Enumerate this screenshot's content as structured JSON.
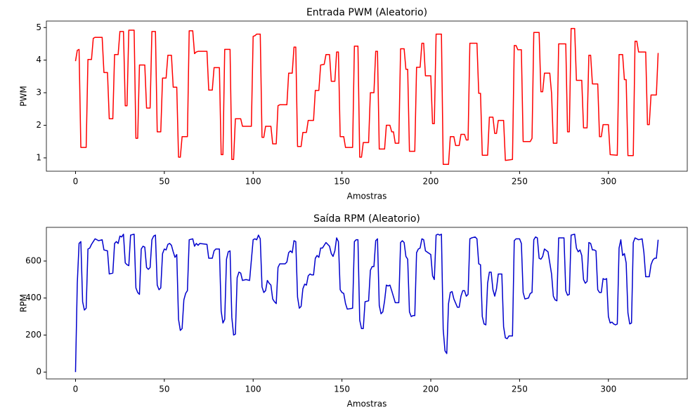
{
  "chart_data": [
    {
      "type": "line",
      "title": "Entrada PWM (Aleatorio)",
      "xlabel": "Amostras",
      "ylabel": "PWM",
      "color": "#ff0000",
      "x": [
        0,
        1,
        2,
        3,
        6,
        7,
        9,
        10,
        11,
        15,
        16,
        18,
        19,
        21,
        22,
        24,
        25,
        27,
        28,
        29,
        30,
        33,
        34,
        35,
        36,
        39,
        40,
        42,
        43,
        45,
        46,
        48,
        49,
        51,
        52,
        54,
        55,
        57,
        58,
        59,
        60,
        63,
        64,
        66,
        67,
        68,
        69,
        74,
        75,
        77,
        78,
        81,
        82,
        83,
        84,
        87,
        88,
        89,
        90,
        93,
        94,
        99,
        100,
        101,
        102,
        104,
        105,
        106,
        107,
        110,
        111,
        113,
        114,
        115,
        119,
        120,
        122,
        123,
        124,
        125,
        127,
        128,
        130,
        131,
        134,
        135,
        137,
        138,
        140,
        141,
        143,
        144,
        146,
        147,
        148,
        149,
        151,
        152,
        156,
        157,
        159,
        160,
        161,
        162,
        165,
        166,
        168,
        169,
        170,
        171,
        174,
        175,
        177,
        178,
        179,
        180,
        182,
        183,
        185,
        186,
        187,
        188,
        191,
        192,
        194,
        195,
        196,
        197,
        200,
        201,
        202,
        203,
        206,
        207,
        210,
        211,
        213,
        214,
        216,
        217,
        219,
        220,
        221,
        222,
        226,
        227,
        228,
        229,
        232,
        233,
        235,
        236,
        237,
        238,
        241,
        242,
        246,
        247,
        248,
        249,
        251,
        252,
        256,
        257,
        258,
        261,
        262,
        263,
        264,
        267,
        268,
        269,
        271,
        272,
        276,
        277,
        278,
        279,
        281,
        282,
        285,
        286,
        288,
        289,
        290,
        291,
        294,
        295,
        296,
        297,
        300,
        301,
        305,
        306,
        308,
        309,
        310,
        311,
        314,
        315,
        316,
        317,
        321,
        322,
        323,
        324,
        327,
        328
      ],
      "values": [
        3.97,
        4.3,
        4.33,
        1.32,
        1.32,
        4.02,
        4.02,
        4.67,
        4.7,
        4.7,
        3.62,
        3.62,
        2.2,
        2.2,
        4.17,
        4.17,
        4.88,
        4.88,
        2.6,
        2.6,
        4.92,
        4.92,
        1.6,
        1.6,
        3.85,
        3.85,
        2.53,
        2.53,
        4.88,
        4.88,
        1.8,
        1.8,
        3.45,
        3.45,
        4.15,
        4.15,
        3.17,
        3.17,
        1.02,
        1.02,
        1.65,
        1.65,
        4.9,
        4.9,
        4.2,
        4.25,
        4.27,
        4.27,
        3.08,
        3.08,
        3.77,
        3.77,
        1.1,
        1.1,
        4.33,
        4.33,
        0.95,
        0.95,
        2.2,
        2.2,
        1.97,
        1.97,
        4.73,
        4.75,
        4.8,
        4.8,
        1.63,
        1.63,
        1.97,
        1.97,
        1.43,
        1.43,
        2.6,
        2.63,
        2.63,
        3.6,
        3.6,
        4.4,
        4.4,
        1.35,
        1.35,
        1.78,
        1.78,
        2.15,
        2.15,
        3.07,
        3.07,
        3.85,
        3.87,
        4.17,
        4.17,
        3.35,
        3.35,
        4.25,
        4.25,
        1.65,
        1.65,
        1.32,
        1.32,
        4.43,
        4.43,
        1.02,
        1.02,
        1.47,
        1.47,
        3.0,
        3.0,
        4.27,
        4.27,
        1.27,
        1.27,
        2.0,
        2.0,
        1.8,
        1.8,
        1.45,
        1.45,
        4.35,
        4.35,
        3.72,
        3.72,
        1.2,
        1.2,
        3.78,
        3.78,
        4.52,
        4.52,
        3.52,
        3.52,
        2.05,
        2.05,
        4.8,
        4.8,
        0.8,
        0.8,
        1.65,
        1.65,
        1.38,
        1.38,
        1.72,
        1.72,
        1.55,
        1.55,
        4.52,
        4.52,
        2.98,
        2.98,
        1.08,
        1.08,
        2.25,
        2.25,
        1.75,
        1.75,
        2.15,
        2.15,
        0.92,
        0.95,
        4.45,
        4.45,
        4.32,
        4.32,
        1.5,
        1.5,
        1.6,
        4.85,
        4.85,
        3.03,
        3.03,
        3.6,
        3.6,
        2.98,
        1.45,
        1.45,
        4.5,
        4.5,
        1.8,
        1.8,
        4.97,
        4.97,
        3.38,
        3.38,
        1.92,
        1.92,
        4.15,
        4.15,
        3.27,
        3.27,
        1.65,
        1.65,
        2.02,
        2.02,
        1.1,
        1.08,
        4.17,
        4.17,
        3.4,
        3.4,
        1.07,
        1.07,
        4.58,
        4.58,
        4.25,
        4.25,
        2.02,
        2.02,
        2.93,
        2.93,
        4.22
      ],
      "xlim": [
        -16.4,
        344.4
      ],
      "xticks": [
        0,
        50,
        100,
        150,
        200,
        250,
        300
      ],
      "ylim": [
        0.59,
        5.2
      ],
      "yticks": [
        1,
        2,
        3,
        4,
        5
      ]
    },
    {
      "type": "line",
      "title": "Saída RPM (Aleatorio)",
      "xlabel": "Amostras",
      "ylabel": "RPM",
      "color": "#0000cc",
      "x": [
        0,
        1,
        2,
        3,
        4,
        5,
        6,
        7,
        8,
        9,
        10,
        11,
        13,
        15,
        16,
        18,
        19,
        21,
        22,
        23,
        24,
        25,
        26,
        27,
        28,
        29,
        30,
        31,
        33,
        34,
        35,
        36,
        37,
        38,
        39,
        40,
        41,
        42,
        43,
        44,
        45,
        46,
        47,
        48,
        49,
        50,
        51,
        52,
        53,
        54,
        55,
        56,
        57,
        58,
        59,
        60,
        61,
        62,
        63,
        64,
        66,
        67,
        68,
        69,
        70,
        74,
        75,
        77,
        78,
        79,
        81,
        82,
        83,
        84,
        85,
        86,
        87,
        88,
        89,
        90,
        91,
        92,
        93,
        94,
        96,
        98,
        100,
        101,
        102,
        103,
        104,
        105,
        106,
        107,
        108,
        109,
        110,
        111,
        112,
        113,
        114,
        115,
        118,
        119,
        120,
        121,
        122,
        123,
        124,
        125,
        126,
        127,
        128,
        129,
        130,
        131,
        132,
        133,
        134,
        135,
        136,
        137,
        138,
        139,
        141,
        143,
        144,
        145,
        146,
        147,
        148,
        149,
        150,
        151,
        152,
        153,
        156,
        157,
        158,
        159,
        160,
        161,
        162,
        163,
        165,
        166,
        167,
        168,
        169,
        170,
        171,
        172,
        173,
        174,
        175,
        176,
        177,
        178,
        180,
        182,
        183,
        184,
        185,
        186,
        187,
        188,
        189,
        190,
        191,
        192,
        193,
        194,
        195,
        196,
        197,
        200,
        201,
        202,
        203,
        204,
        205,
        206,
        207,
        208,
        209,
        210,
        211,
        212,
        213,
        215,
        216,
        217,
        218,
        219,
        220,
        221,
        222,
        223,
        225,
        226,
        227,
        228,
        229,
        230,
        231,
        232,
        233,
        234,
        235,
        236,
        237,
        238,
        240,
        241,
        242,
        243,
        244,
        246,
        247,
        248,
        250,
        251,
        252,
        253,
        255,
        256,
        257,
        258,
        259,
        260,
        261,
        262,
        263,
        264,
        266,
        268,
        269,
        270,
        271,
        272,
        275,
        276,
        277,
        278,
        279,
        281,
        282,
        283,
        284,
        285,
        286,
        287,
        288,
        289,
        290,
        291,
        292,
        293,
        294,
        295,
        296,
        297,
        298,
        299,
        300,
        301,
        302,
        303,
        304,
        305,
        306,
        307,
        308,
        309,
        310,
        311,
        312,
        313,
        314,
        315,
        317,
        319,
        320,
        321,
        323,
        324,
        325,
        326,
        327,
        328
      ],
      "values": [
        0,
        480,
        695,
        705,
        380,
        335,
        345,
        665,
        670,
        690,
        705,
        720,
        710,
        715,
        660,
        655,
        530,
        535,
        695,
        705,
        695,
        735,
        730,
        745,
        590,
        580,
        575,
        740,
        745,
        455,
        430,
        420,
        665,
        680,
        675,
        565,
        555,
        565,
        715,
        735,
        740,
        470,
        445,
        455,
        640,
        665,
        660,
        690,
        695,
        685,
        650,
        620,
        635,
        285,
        225,
        235,
        390,
        425,
        440,
        715,
        720,
        680,
        695,
        685,
        695,
        690,
        615,
        615,
        655,
        665,
        665,
        330,
        265,
        285,
        610,
        650,
        655,
        295,
        200,
        205,
        510,
        540,
        535,
        495,
        500,
        495,
        715,
        720,
        715,
        740,
        720,
        460,
        430,
        440,
        495,
        480,
        470,
        395,
        380,
        370,
        565,
        585,
        585,
        595,
        645,
        655,
        645,
        710,
        705,
        405,
        345,
        355,
        450,
        475,
        470,
        520,
        530,
        525,
        525,
        615,
        630,
        620,
        670,
        670,
        700,
        680,
        640,
        625,
        655,
        725,
        705,
        445,
        430,
        425,
        370,
        340,
        345,
        705,
        715,
        715,
        280,
        235,
        235,
        380,
        385,
        550,
        570,
        570,
        710,
        720,
        360,
        315,
        325,
        385,
        470,
        465,
        470,
        440,
        375,
        375,
        700,
        710,
        700,
        625,
        610,
        325,
        300,
        305,
        305,
        645,
        665,
        670,
        720,
        715,
        655,
        635,
        520,
        500,
        740,
        745,
        740,
        745,
        230,
        115,
        100,
        370,
        430,
        435,
        395,
        350,
        350,
        410,
        440,
        440,
        410,
        420,
        720,
        725,
        730,
        720,
        585,
        580,
        300,
        260,
        255,
        480,
        540,
        540,
        445,
        410,
        450,
        530,
        530,
        245,
        185,
        180,
        195,
        195,
        710,
        720,
        720,
        695,
        430,
        395,
        400,
        425,
        430,
        715,
        730,
        725,
        615,
        610,
        625,
        665,
        650,
        530,
        410,
        390,
        385,
        725,
        725,
        440,
        415,
        420,
        740,
        745,
        670,
        650,
        660,
        630,
        500,
        480,
        490,
        700,
        695,
        660,
        660,
        655,
        445,
        430,
        430,
        505,
        500,
        505,
        300,
        265,
        270,
        260,
        255,
        260,
        670,
        715,
        630,
        640,
        590,
        320,
        260,
        265,
        700,
        725,
        715,
        720,
        645,
        515,
        515,
        580,
        605,
        615,
        615,
        715
      ],
      "xlim": [
        -16.4,
        344.4
      ],
      "xticks": [
        0,
        50,
        100,
        150,
        200,
        250,
        300
      ],
      "ylim": [
        -37,
        782
      ],
      "yticks": [
        0,
        200,
        400,
        600
      ]
    }
  ]
}
